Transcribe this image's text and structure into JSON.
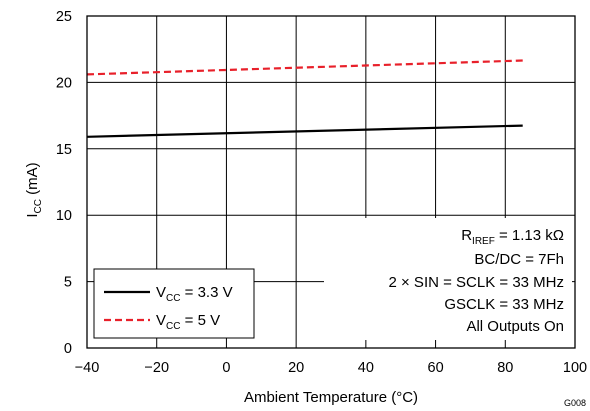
{
  "chart_data": {
    "type": "line",
    "title": "",
    "xlabel": "Ambient Temperature (°C)",
    "ylabel_main": "I",
    "ylabel_sub": "CC",
    "ylabel_unit": " (mA)",
    "xlim": [
      -40,
      100
    ],
    "ylim": [
      0,
      25
    ],
    "xticks": [
      -40,
      -20,
      0,
      20,
      40,
      60,
      80,
      100
    ],
    "yticks": [
      0,
      5,
      10,
      15,
      20,
      25
    ],
    "xtick_labels": [
      "−40",
      "−20",
      "0",
      "20",
      "40",
      "60",
      "80",
      "100"
    ],
    "ytick_labels": [
      "0",
      "5",
      "10",
      "15",
      "20",
      "25"
    ],
    "grid": true,
    "legend_position": "bottom-left",
    "series": [
      {
        "name_main": "V",
        "name_sub": "CC",
        "name_rest": " = 3.3 V",
        "color": "#000000",
        "dash": "solid",
        "x": [
          -40,
          85
        ],
        "y": [
          15.9,
          16.75
        ]
      },
      {
        "name_main": "V",
        "name_sub": "CC",
        "name_rest": " = 5 V",
        "color": "#e8202a",
        "dash": "dashed",
        "x": [
          -40,
          85
        ],
        "y": [
          20.6,
          21.65
        ]
      }
    ],
    "annotations": {
      "riref_main": "R",
      "riref_sub": "IREF",
      "riref_rest": " = 1.13 kΩ",
      "bcdc": "BC/DC = 7Fh",
      "sin": "2 × SIN = SCLK = 33 MHz",
      "gsclk": "GSCLK = 33 MHz",
      "outputs": "All Outputs On"
    },
    "figure_id": "G008"
  }
}
